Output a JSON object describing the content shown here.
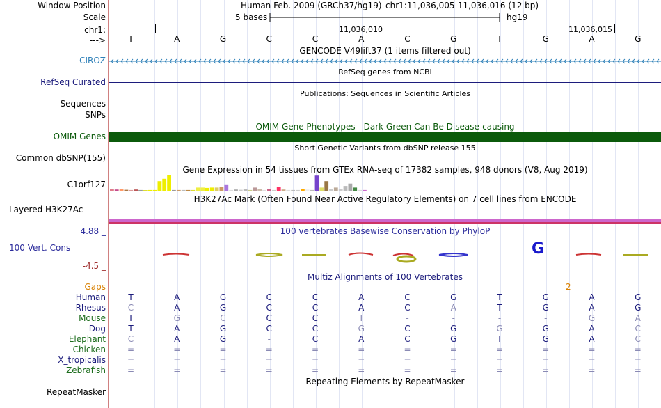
{
  "header": {
    "labels": {
      "window_position": "Window Position",
      "scale": "Scale",
      "chrom": "chr1:",
      "arrow": "--->"
    },
    "assembly": "Human Feb. 2009 (GRCh37/hg19)",
    "position": "chr1:11,036,005-11,036,016 (12 bp)",
    "scale_text": "5 bases",
    "scale_db": "hg19",
    "tick_1": "11,036,010",
    "tick_2": "11,036,015"
  },
  "bases": [
    "T",
    "A",
    "G",
    "C",
    "C",
    "A",
    "C",
    "G",
    "T",
    "G",
    "A",
    "G"
  ],
  "tracks": {
    "gencode": {
      "title": "GENCODE V49lift37 (1 items filtered out)",
      "gene": "CIROZ",
      "gene_color": "#2f80b8"
    },
    "refseq": {
      "title": "RefSeq genes from NCBI",
      "label": "RefSeq Curated",
      "color": "#1c1c7c"
    },
    "publications": {
      "title": "Publications: Sequences in Scientific Articles",
      "label1": "Sequences",
      "label2": "SNPs"
    },
    "omim": {
      "title": "OMIM Gene Phenotypes - Dark Green Can Be Disease-causing",
      "label": "OMIM Genes",
      "color": "#0b5a0b"
    },
    "dbsnp": {
      "title": "Short Genetic Variants from dbSNP release 155",
      "label": "Common dbSNP(155)"
    },
    "gtex": {
      "title": "Gene Expression in 54 tissues from GTEx RNA-seq of 17382 samples, 948 donors (V8, Aug 2019)",
      "label": "C1orf127",
      "bars": [
        {
          "v": 0.12,
          "c": "#e07b8a"
        },
        {
          "v": 0.08,
          "c": "#c54b8c"
        },
        {
          "v": 0.1,
          "c": "#ff9966"
        },
        {
          "v": 0.06,
          "c": "#aa7744"
        },
        {
          "v": 0.05,
          "c": "#dd9999"
        },
        {
          "v": 0.08,
          "c": "#bb5555"
        },
        {
          "v": 0.05,
          "c": "#999999"
        },
        {
          "v": 0.04,
          "c": "#dddd33"
        },
        {
          "v": 0.05,
          "c": "#eeee00"
        },
        {
          "v": 0.05,
          "c": "#eeee00"
        },
        {
          "v": 0.6,
          "c": "#eeee00"
        },
        {
          "v": 0.75,
          "c": "#eeee00"
        },
        {
          "v": 1.0,
          "c": "#eeee00"
        },
        {
          "v": 0.05,
          "c": "#999999"
        },
        {
          "v": 0.05,
          "c": "#cc9966"
        },
        {
          "v": 0.05,
          "c": "#bbbbbb"
        },
        {
          "v": 0.05,
          "c": "#bb8844"
        },
        {
          "v": 0.05,
          "c": "#dddd33"
        },
        {
          "v": 0.2,
          "c": "#eeee44"
        },
        {
          "v": 0.2,
          "c": "#eeee44"
        },
        {
          "v": 0.18,
          "c": "#eeee00"
        },
        {
          "v": 0.2,
          "c": "#eeee00"
        },
        {
          "v": 0.2,
          "c": "#ddcc66"
        },
        {
          "v": 0.25,
          "c": "#cc9966"
        },
        {
          "v": 0.4,
          "c": "#aa77dd"
        },
        {
          "v": 0.05,
          "c": "#dddddd"
        },
        {
          "v": 0.08,
          "c": "#aaaaaa"
        },
        {
          "v": 0.06,
          "c": "#cccccc"
        },
        {
          "v": 0.12,
          "c": "#bbbbbb"
        },
        {
          "v": 0.05,
          "c": "#cccc88"
        },
        {
          "v": 0.2,
          "c": "#bb9999"
        },
        {
          "v": 0.1,
          "c": "#ccbbaa"
        },
        {
          "v": 0.05,
          "c": "#dddddd"
        },
        {
          "v": 0.12,
          "c": "#cc6688"
        },
        {
          "v": 0.05,
          "c": "#cccccc"
        },
        {
          "v": 0.25,
          "c": "#ff3366"
        },
        {
          "v": 0.08,
          "c": "#ccaa88"
        },
        {
          "v": 0.05,
          "c": "#dddddd"
        },
        {
          "v": 0.05,
          "c": "#bbbbbb"
        },
        {
          "v": 0.05,
          "c": "#cccccc"
        },
        {
          "v": 0.12,
          "c": "#ffaa00"
        },
        {
          "v": 0.08,
          "c": "#eeeeee"
        },
        {
          "v": 0.05,
          "c": "#bbbbbb"
        },
        {
          "v": 0.95,
          "c": "#7744cc"
        },
        {
          "v": 0.2,
          "c": "#dddd66"
        },
        {
          "v": 0.6,
          "c": "#997744"
        },
        {
          "v": 0.1,
          "c": "#cccccc"
        },
        {
          "v": 0.2,
          "c": "#bbaa99"
        },
        {
          "v": 0.12,
          "c": "#cccccc"
        },
        {
          "v": 0.3,
          "c": "#bbbbbb"
        },
        {
          "v": 0.45,
          "c": "#aaaaaa"
        },
        {
          "v": 0.2,
          "c": "#448844"
        },
        {
          "v": 0.05,
          "c": "#dddddd"
        },
        {
          "v": 0.05,
          "c": "#cc66cc"
        }
      ]
    },
    "h3k27ac": {
      "title": "H3K27Ac Mark (Often Found Near Active Regulatory Elements) on 7 cell lines from ENCODE",
      "label": "Layered H3K27Ac"
    },
    "phylop": {
      "title": "100 vertebrates Basewise Conservation by PhyloP",
      "label": "100 Vert. Cons",
      "max": "4.88 _",
      "min": "-4.5 _"
    },
    "multiz": {
      "title": "Multiz Alignments of 100 Vertebrates",
      "gaps_label": "Gaps",
      "gap_count": "2"
    },
    "repeatmasker": {
      "title": "Repeating Elements by RepeatMasker",
      "label": "RepeatMasker"
    }
  },
  "species": [
    {
      "name": "Human",
      "color": "#1c1c7c",
      "seq": [
        "T",
        "A",
        "G",
        "C",
        "C",
        "A",
        "C",
        "G",
        "T",
        "G",
        "A",
        "G"
      ],
      "dim": []
    },
    {
      "name": "Rhesus",
      "color": "#1c1c7c",
      "seq": [
        "C",
        "A",
        "G",
        "C",
        "C",
        "A",
        "C",
        "A",
        "T",
        "G",
        "A",
        "G"
      ],
      "dim": [
        0,
        7
      ]
    },
    {
      "name": "Mouse",
      "color": "#1c6c1c",
      "seq": [
        "T",
        "G",
        "C",
        "C",
        "C",
        "T",
        "-",
        "-",
        "-",
        "-",
        "G",
        "A"
      ],
      "dim": [
        1,
        2,
        5,
        6,
        7,
        8,
        9,
        10,
        11
      ]
    },
    {
      "name": "Dog",
      "color": "#1c1c7c",
      "seq": [
        "T",
        "A",
        "G",
        "C",
        "C",
        "G",
        "C",
        "G",
        "G",
        "G",
        "A",
        "C"
      ],
      "dim": [
        5,
        8,
        11
      ]
    },
    {
      "name": "Elephant",
      "color": "#1c6c1c",
      "seq": [
        "C",
        "A",
        "G",
        "-",
        "C",
        "A",
        "C",
        "G",
        "T",
        "G",
        "A",
        "C"
      ],
      "dim": [
        0,
        3,
        11
      ]
    },
    {
      "name": "Chicken",
      "color": "#1c6c1c",
      "seq": [
        "=",
        "=",
        "=",
        "=",
        "=",
        "=",
        "=",
        "=",
        "=",
        "=",
        "=",
        "="
      ],
      "dim": [
        0,
        1,
        2,
        3,
        4,
        5,
        6,
        7,
        8,
        9,
        10,
        11
      ]
    },
    {
      "name": "X_tropicalis",
      "color": "#1c1c7c",
      "seq": [
        "=",
        "=",
        "=",
        "=",
        "=",
        "=",
        "=",
        "=",
        "=",
        "=",
        "=",
        "="
      ],
      "dim": [
        0,
        1,
        2,
        3,
        4,
        5,
        6,
        7,
        8,
        9,
        10,
        11
      ]
    },
    {
      "name": "Zebrafish",
      "color": "#1c6c1c",
      "seq": [
        "=",
        "=",
        "=",
        "=",
        "=",
        "=",
        "=",
        "=",
        "=",
        "=",
        "=",
        "="
      ],
      "dim": [
        0,
        1,
        2,
        3,
        4,
        5,
        6,
        7,
        8,
        9,
        10,
        11
      ]
    }
  ],
  "colors": {
    "conservation": "#2c2c9c",
    "dim_base": "#8a8ab4",
    "omim_green": "#0b5a0b",
    "gaps": "#d98000",
    "h3k27ac": "#cc66cc"
  }
}
